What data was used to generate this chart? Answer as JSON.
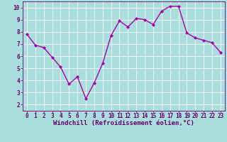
{
  "x": [
    0,
    1,
    2,
    3,
    4,
    5,
    6,
    7,
    8,
    9,
    10,
    11,
    12,
    13,
    14,
    15,
    16,
    17,
    18,
    19,
    20,
    21,
    22,
    23
  ],
  "y": [
    7.8,
    6.9,
    6.7,
    5.9,
    5.1,
    3.7,
    4.3,
    2.5,
    3.8,
    5.4,
    7.7,
    8.9,
    8.4,
    9.1,
    9.0,
    8.6,
    9.7,
    10.1,
    10.1,
    7.9,
    7.5,
    7.3,
    7.1,
    6.3
  ],
  "line_color": "#aa00aa",
  "marker": "D",
  "marker_size": 2.0,
  "bg_color": "#aadddd",
  "grid_color": "#ffffff",
  "xlabel": "Windchill (Refroidissement éolien,°C)",
  "xlim": [
    -0.5,
    23.5
  ],
  "ylim": [
    1.5,
    10.5
  ],
  "yticks": [
    2,
    3,
    4,
    5,
    6,
    7,
    8,
    9,
    10
  ],
  "xticks": [
    0,
    1,
    2,
    3,
    4,
    5,
    6,
    7,
    8,
    9,
    10,
    11,
    12,
    13,
    14,
    15,
    16,
    17,
    18,
    19,
    20,
    21,
    22,
    23
  ],
  "line_color_hex": "#aa00aa",
  "tick_color": "#660066",
  "linewidth": 1.0,
  "font_size_label": 6.5,
  "font_size_tick": 5.5
}
